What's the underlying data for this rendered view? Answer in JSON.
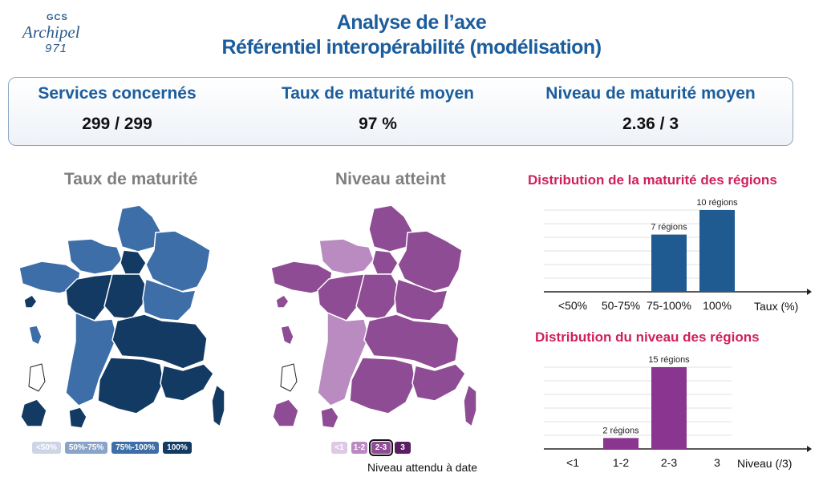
{
  "logo": {
    "gcs": "GCS",
    "name": "Archipel",
    "number": "971"
  },
  "header": {
    "title_line1": "Analyse de l’axe",
    "title_line2": "Référentiel interopérabilité (modélisation)"
  },
  "kpis": {
    "services": {
      "label": "Services concernés",
      "value": "299 / 299"
    },
    "taux": {
      "label": "Taux de maturité moyen",
      "value": "97 %"
    },
    "niveau": {
      "label": "Niveau de maturité moyen",
      "value": "2.36 / 3"
    }
  },
  "maps": {
    "taux_title": "Taux de maturité",
    "niveau_title": "Niveau atteint",
    "taux_legend": [
      {
        "label": "<50%",
        "color": "#ccd4e6"
      },
      {
        "label": "50%-75%",
        "color": "#8aa3c8"
      },
      {
        "label": "75%-100%",
        "color": "#3d6ea8"
      },
      {
        "label": "100%",
        "color": "#133a63"
      }
    ],
    "niveau_legend": [
      {
        "label": "<1",
        "color": "#ddc9e6"
      },
      {
        "label": "1-2",
        "color": "#b98bc0"
      },
      {
        "label": "2-3",
        "color": "#8e4c94"
      },
      {
        "label": "3",
        "color": "#5a1e63"
      }
    ],
    "niveau_expected_note": "Niveau attendu à date",
    "colors": {
      "blue_light": "#8aa3c8",
      "blue_mid": "#3d6ea8",
      "blue_dark": "#133a63",
      "purple_light": "#b98bc0",
      "purple_mid": "#8e4c94",
      "purple_dark": "#5a1e63"
    }
  },
  "chart_data": [
    {
      "type": "bar",
      "title": "Distribution de la maturité des régions",
      "categories": [
        "<50%",
        "50-75%",
        "75-100%",
        "100%"
      ],
      "values": [
        0,
        0,
        7,
        10
      ],
      "data_labels": [
        "",
        "",
        "7 régions",
        "10 régions"
      ],
      "xlabel": "Taux (%)",
      "ylim": [
        0,
        10
      ],
      "grid": true,
      "bar_color": "#1f5a91"
    },
    {
      "type": "bar",
      "title": "Distribution du niveau des régions",
      "categories": [
        "<1",
        "1-2",
        "2-3",
        "3"
      ],
      "values": [
        0,
        2,
        15,
        0
      ],
      "data_labels": [
        "",
        "2 régions",
        "15 régions",
        ""
      ],
      "xlabel": "Niveau (/3)",
      "ylim": [
        0,
        15
      ],
      "grid": true,
      "bar_color": "#8a358f"
    }
  ]
}
